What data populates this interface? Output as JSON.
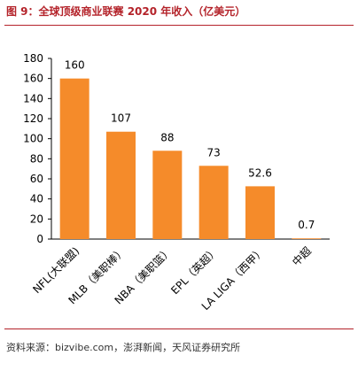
{
  "header": {
    "title": "图 9：全球顶级商业联赛 2020 年收入（亿美元）"
  },
  "footer": {
    "source": "资料来源：bizvibe.com，澎湃新闻，天风证券研究所"
  },
  "colors": {
    "bar": "#f58b2a",
    "accent": "#b4232a"
  },
  "chart_data": {
    "type": "bar",
    "title": "",
    "xlabel": "",
    "ylabel": "",
    "ylim": [
      0,
      180
    ],
    "yticks": [
      0,
      20,
      40,
      60,
      80,
      100,
      120,
      140,
      160,
      180
    ],
    "categories": [
      "NFL(大联盟)",
      "MLB（美职棒）",
      "NBA（美职篮）",
      "EPL（英超）",
      "LA LIGA（西甲）",
      "中超"
    ],
    "values": [
      160,
      107,
      88,
      73,
      52.6,
      0.7
    ],
    "data_labels": [
      "160",
      "107",
      "88",
      "73",
      "52.6",
      "0.7"
    ],
    "grid": false,
    "legend": "none"
  }
}
